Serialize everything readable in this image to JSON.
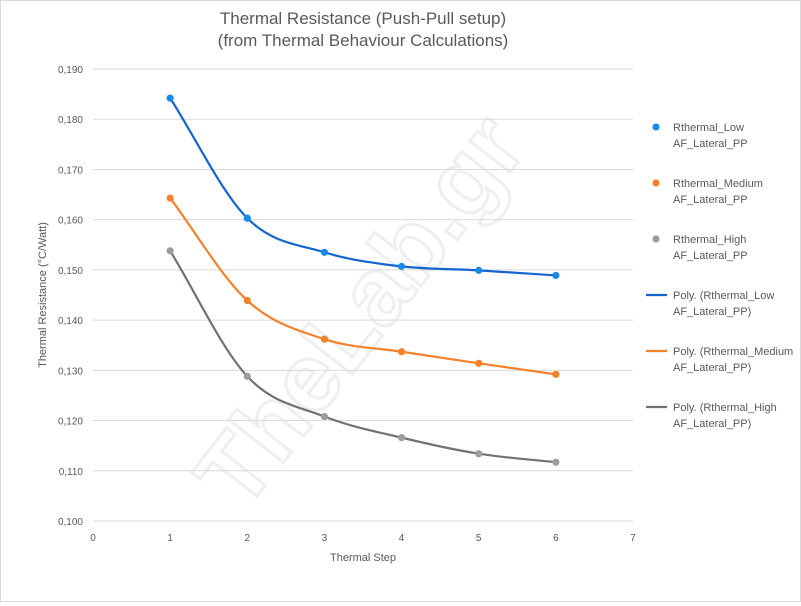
{
  "chart_data": {
    "type": "scatter",
    "title": [
      "Thermal Resistance (Push-Pull setup)",
      "(from Thermal Behaviour Calculations)"
    ],
    "xlabel": "Thermal Step",
    "ylabel": "Thermal Resistance (°C/Watt)",
    "xlim": [
      0,
      7
    ],
    "ylim": [
      0.1,
      0.19
    ],
    "x_ticks": [
      "0",
      "1",
      "2",
      "3",
      "4",
      "5",
      "6",
      "7"
    ],
    "y_ticks": [
      "0,100",
      "0,110",
      "0,120",
      "0,130",
      "0,140",
      "0,150",
      "0,160",
      "0,170",
      "0,180",
      "0,190"
    ],
    "grid": "horizontal",
    "legend_position": "right",
    "series": [
      {
        "name": [
          "Rthermal_Low",
          "AF_Lateral_PP"
        ],
        "color": "#1a8ae8",
        "x": [
          1,
          2,
          3,
          4,
          5,
          6
        ],
        "values": [
          0.1842,
          0.1603,
          0.1535,
          0.1507,
          0.1499,
          0.1489
        ]
      },
      {
        "name": [
          "Rthermal_Medium",
          "AF_Lateral_PP"
        ],
        "color": "#f4812b",
        "x": [
          1,
          2,
          3,
          4,
          5,
          6
        ],
        "values": [
          0.1643,
          0.1439,
          0.1362,
          0.1337,
          0.1314,
          0.1292
        ]
      },
      {
        "name": [
          "Rthermal_High",
          "AF_Lateral_PP"
        ],
        "color": "#9d9d9d",
        "x": [
          1,
          2,
          3,
          4,
          5,
          6
        ],
        "values": [
          0.1538,
          0.1288,
          0.1208,
          0.1166,
          0.1134,
          0.1117
        ]
      }
    ],
    "trendlines": [
      {
        "name": [
          "Poly. (Rthermal_Low",
          "AF_Lateral_PP)"
        ],
        "color": "#1565d0"
      },
      {
        "name": [
          "Poly. (Rthermal_Medium",
          "AF_Lateral_PP)"
        ],
        "color": "#f4812b"
      },
      {
        "name": [
          "Poly. (Rthermal_High",
          "AF_Lateral_PP)"
        ],
        "color": "#767171"
      }
    ],
    "watermark": "TheLab.gr"
  }
}
